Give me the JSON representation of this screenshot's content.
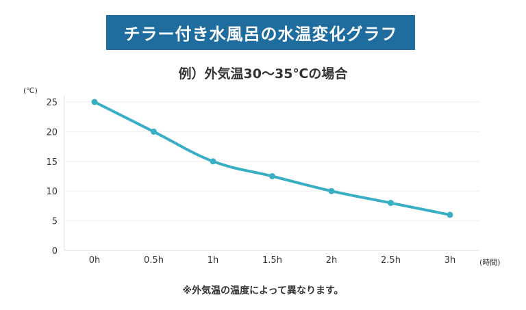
{
  "header": {
    "title": "チラー付き水風呂の水温変化グラフ",
    "subtitle": "例）外気温30～35℃の場合",
    "footnote": "※外気温の温度によって異なります。"
  },
  "colors": {
    "banner": "#1f6d9e",
    "line": "#3aaec4"
  },
  "chart_data": {
    "type": "line",
    "categories": [
      "0h",
      "0.5h",
      "1h",
      "1.5h",
      "2h",
      "2.5h",
      "3h"
    ],
    "series": [
      {
        "values": [
          25,
          20,
          15,
          12.5,
          10,
          8,
          6
        ]
      }
    ],
    "y_unit": "(℃)",
    "x_unit": "(時間)",
    "ylim": [
      0,
      25
    ],
    "yticks": [
      "0",
      "5",
      "10",
      "15",
      "20",
      "25"
    ],
    "grid": true
  }
}
